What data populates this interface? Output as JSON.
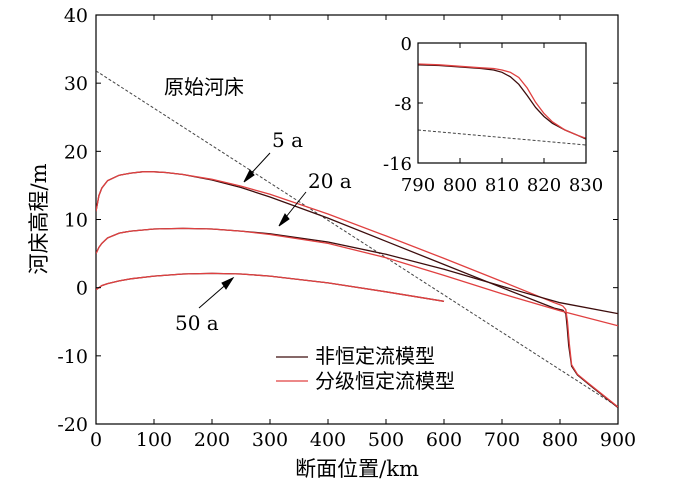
{
  "chart_data": {
    "type": "line",
    "xlabel": "断面位置/km",
    "ylabel": "河床高程/m",
    "xlim": [
      0,
      900
    ],
    "ylim": [
      -20,
      40
    ],
    "xticks": [
      0,
      100,
      200,
      300,
      400,
      500,
      600,
      700,
      800,
      900
    ],
    "yticks": [
      -20,
      -10,
      0,
      10,
      20,
      30,
      40
    ],
    "grid": false,
    "legend_position": "bottom-center",
    "legend": [
      {
        "label": "非恒定流模型",
        "color": "#3d0d0d"
      },
      {
        "label": "分级恒定流模型",
        "color": "#e04040"
      }
    ],
    "annotations": [
      "原始河床",
      "5 a",
      "20 a",
      "50 a"
    ],
    "series": [
      {
        "name": "原始河床",
        "color": "#444444",
        "dashed": true,
        "x": [
          0,
          900
        ],
        "y": [
          31.8,
          -17.5
        ]
      },
      {
        "name": "非恒定流模型 5 a",
        "color": "#3d0d0d",
        "x": [
          0,
          5,
          10,
          20,
          40,
          60,
          80,
          100,
          120,
          150,
          200,
          250,
          300,
          400,
          500,
          600,
          700,
          790,
          800,
          805,
          810,
          812,
          815,
          820,
          830,
          850,
          900
        ],
        "y": [
          11.2,
          13.5,
          14.6,
          15.7,
          16.5,
          16.8,
          17.0,
          17.0,
          16.9,
          16.6,
          15.8,
          14.7,
          13.3,
          10.2,
          6.8,
          3.4,
          0.0,
          -3.0,
          -3.2,
          -3.3,
          -3.8,
          -5.5,
          -8.5,
          -11.5,
          -12.8,
          -14.2,
          -17.6
        ]
      },
      {
        "name": "分级恒定流模型 5 a",
        "color": "#e04040",
        "x": [
          0,
          5,
          10,
          20,
          40,
          60,
          80,
          100,
          120,
          150,
          200,
          250,
          300,
          400,
          500,
          600,
          700,
          790,
          800,
          805,
          810,
          813,
          816,
          820,
          830,
          850,
          900
        ],
        "y": [
          11.2,
          13.5,
          14.6,
          15.7,
          16.5,
          16.8,
          17.0,
          17.0,
          16.9,
          16.6,
          15.9,
          14.9,
          13.7,
          10.8,
          7.6,
          4.3,
          0.9,
          -2.2,
          -2.5,
          -2.7,
          -3.2,
          -5.0,
          -8.2,
          -11.3,
          -12.7,
          -14.1,
          -17.5
        ]
      },
      {
        "name": "非恒定流模型 20 a",
        "color": "#3d0d0d",
        "x": [
          0,
          5,
          10,
          20,
          40,
          60,
          100,
          150,
          200,
          250,
          300,
          400,
          500,
          600,
          700,
          800,
          900
        ],
        "y": [
          5.0,
          5.9,
          6.5,
          7.3,
          8.0,
          8.3,
          8.6,
          8.7,
          8.6,
          8.3,
          7.9,
          6.7,
          4.9,
          2.7,
          0.2,
          -2.2,
          -3.8
        ]
      },
      {
        "name": "分级恒定流模型 20 a",
        "color": "#e04040",
        "x": [
          0,
          5,
          10,
          20,
          40,
          60,
          100,
          150,
          200,
          250,
          300,
          400,
          500,
          600,
          700,
          800,
          900
        ],
        "y": [
          5.0,
          5.9,
          6.5,
          7.3,
          8.0,
          8.3,
          8.6,
          8.7,
          8.6,
          8.3,
          7.8,
          6.5,
          4.4,
          1.8,
          -0.9,
          -3.4,
          -5.6
        ]
      },
      {
        "name": "非恒定流模型 50 a",
        "color": "#3d0d0d",
        "x": [
          0,
          5,
          10,
          20,
          40,
          60,
          100,
          150,
          200,
          250,
          300,
          400,
          500,
          600
        ],
        "y": [
          -0.3,
          0.0,
          0.3,
          0.6,
          1.0,
          1.3,
          1.7,
          2.0,
          2.1,
          2.0,
          1.7,
          0.7,
          -0.6,
          -2.0
        ]
      },
      {
        "name": "分级恒定流模型 50 a",
        "color": "#e04040",
        "x": [
          0,
          5,
          10,
          20,
          40,
          60,
          100,
          150,
          200,
          250,
          300,
          400,
          500,
          600
        ],
        "y": [
          -0.3,
          0.0,
          0.3,
          0.6,
          1.0,
          1.3,
          1.7,
          2.0,
          2.1,
          2.0,
          1.7,
          0.7,
          -0.6,
          -2.0
        ]
      }
    ],
    "inset": {
      "xlim": [
        790,
        830
      ],
      "ylim": [
        -16,
        0
      ],
      "xticks": [
        790,
        800,
        810,
        820,
        830
      ],
      "yticks": [
        0,
        -8,
        -16
      ],
      "series": [
        {
          "name": "原始河床",
          "color": "#444444",
          "dashed": true,
          "x": [
            790,
            830
          ],
          "y": [
            -11.6,
            -13.6
          ]
        },
        {
          "name": "非恒定流模型",
          "color": "#3d0d0d",
          "x": [
            790,
            795,
            800,
            805,
            808,
            810,
            812,
            814,
            816,
            818,
            820,
            822,
            825,
            828,
            830
          ],
          "y": [
            -2.9,
            -3.0,
            -3.2,
            -3.4,
            -3.6,
            -3.9,
            -4.5,
            -5.5,
            -7.0,
            -8.6,
            -9.8,
            -10.7,
            -11.6,
            -12.3,
            -12.8
          ]
        },
        {
          "name": "分级恒定流模型",
          "color": "#e04040",
          "x": [
            790,
            795,
            800,
            805,
            808,
            810,
            812,
            814,
            816,
            818,
            820,
            822,
            825,
            828,
            830
          ],
          "y": [
            -2.8,
            -2.9,
            -3.1,
            -3.3,
            -3.4,
            -3.6,
            -3.9,
            -4.6,
            -6.0,
            -7.9,
            -9.4,
            -10.5,
            -11.6,
            -12.3,
            -12.7
          ]
        }
      ]
    }
  }
}
